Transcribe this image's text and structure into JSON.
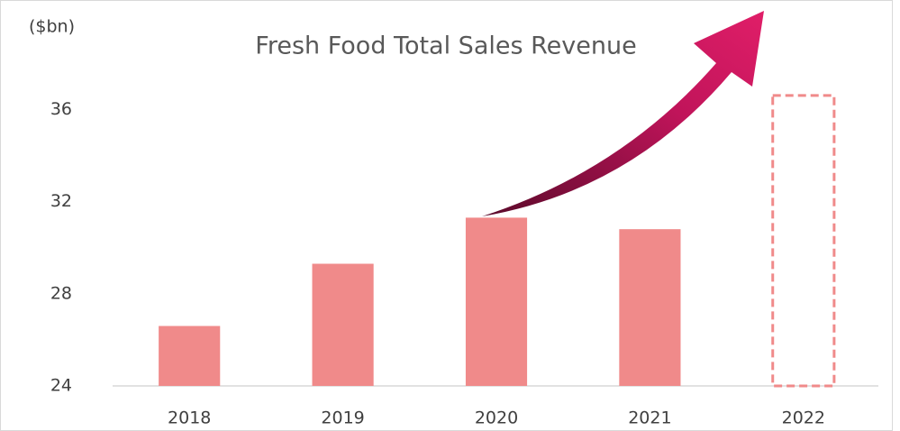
{
  "chart_data": {
    "type": "bar",
    "title": "Fresh Food Total Sales Revenue",
    "y_label": "($bn)",
    "categories": [
      "2018",
      "2019",
      "2020",
      "2021",
      "2022"
    ],
    "values": [
      26.6,
      29.3,
      31.3,
      30.8,
      36.6
    ],
    "dashed": [
      false,
      false,
      false,
      false,
      true
    ],
    "color": "#f08a8a",
    "ylim": [
      24,
      40
    ],
    "yticks": [
      24,
      28,
      32,
      36
    ],
    "grid": false
  }
}
